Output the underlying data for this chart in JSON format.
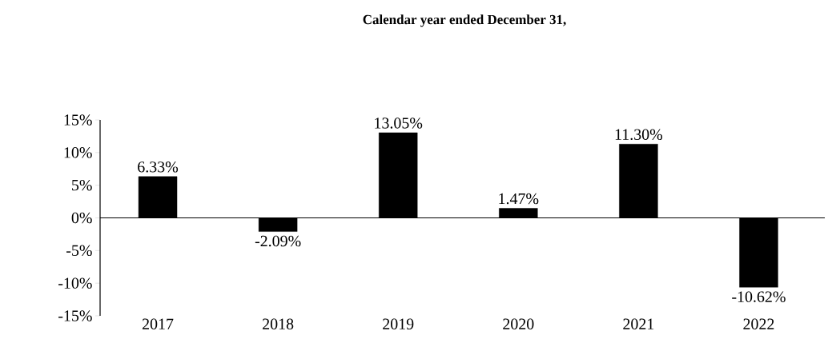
{
  "chart_data": {
    "type": "bar",
    "title": "Calendar year ended December 31,",
    "categories": [
      "2017",
      "2018",
      "2019",
      "2020",
      "2021",
      "2022"
    ],
    "values": [
      6.33,
      -2.09,
      13.05,
      1.47,
      11.3,
      -10.62
    ],
    "value_labels": [
      "6.33%",
      "-2.09%",
      "13.05%",
      "1.47%",
      "11.30%",
      "-10.62%"
    ],
    "color": "#000000",
    "ylim": [
      -15,
      15
    ],
    "yticks": [
      {
        "value": -15,
        "label": "-15%"
      },
      {
        "value": -10,
        "label": "-10%"
      },
      {
        "value": -5,
        "label": "-5%"
      },
      {
        "value": 0,
        "label": "0%"
      },
      {
        "value": 5,
        "label": "5%"
      },
      {
        "value": 10,
        "label": "10%"
      },
      {
        "value": 15,
        "label": "15%"
      }
    ]
  }
}
